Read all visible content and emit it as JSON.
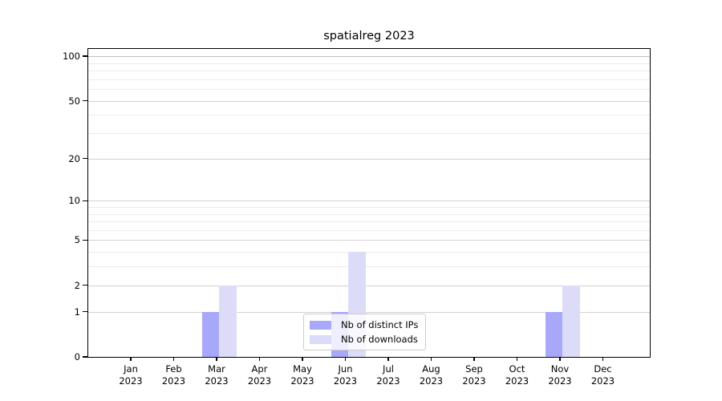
{
  "chart_data": {
    "type": "bar",
    "title": "spatialreg 2023",
    "categories": [
      "Jan",
      "Feb",
      "Mar",
      "Apr",
      "May",
      "Jun",
      "Jul",
      "Aug",
      "Sep",
      "Oct",
      "Nov",
      "Dec"
    ],
    "category_year": "2023",
    "series": [
      {
        "name": "Nb of distinct IPs",
        "color": "#a8a8fa",
        "values": [
          0,
          0,
          1,
          0,
          0,
          1,
          0,
          0,
          0,
          0,
          1,
          0
        ]
      },
      {
        "name": "Nb of downloads",
        "color": "#dcdcf8",
        "values": [
          0,
          0,
          2,
          0,
          0,
          4,
          0,
          0,
          0,
          0,
          2,
          0
        ]
      }
    ],
    "y_axis": {
      "scale": "log10(value+1)",
      "major_ticks": [
        0,
        1,
        2,
        5,
        10,
        20,
        50,
        100
      ],
      "minor_ticks": [
        3,
        4,
        6,
        7,
        8,
        9,
        30,
        40,
        60,
        70,
        80,
        90
      ],
      "ylim": [
        0,
        112
      ]
    },
    "grid": true,
    "legend": {
      "position": "bottom-center",
      "items": [
        "Nb of distinct IPs",
        "Nb of downloads"
      ]
    }
  }
}
